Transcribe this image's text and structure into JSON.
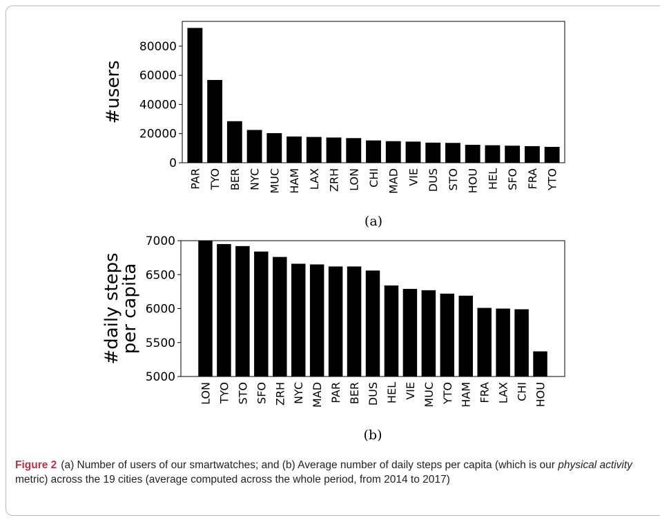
{
  "chart_data": [
    {
      "type": "bar",
      "ylabel": "#users",
      "ylim": [
        0,
        97000
      ],
      "yticks": [
        "0",
        "20000",
        "40000",
        "60000",
        "80000"
      ],
      "categories": [
        "PAR",
        "TYO",
        "BER",
        "NYC",
        "MUC",
        "HAM",
        "LAX",
        "ZRH",
        "LON",
        "CHI",
        "MAD",
        "VIE",
        "DUS",
        "STO",
        "HOU",
        "HEL",
        "SFO",
        "FRA",
        "YTO"
      ],
      "values": [
        92500,
        56800,
        28500,
        22500,
        20300,
        18000,
        17700,
        17300,
        16900,
        15300,
        14800,
        14500,
        13800,
        13600,
        12300,
        12000,
        11700,
        11400,
        10900
      ],
      "label": "(a)"
    },
    {
      "type": "bar",
      "ylabel_lines": [
        "#daily steps",
        "per capita"
      ],
      "ylim": [
        5000,
        7000
      ],
      "yticks": [
        "5000",
        "5500",
        "6000",
        "6500",
        "7000"
      ],
      "categories": [
        "LON",
        "TYO",
        "STO",
        "SFO",
        "ZRH",
        "NYC",
        "MAD",
        "PAR",
        "BER",
        "DUS",
        "HEL",
        "VIE",
        "MUC",
        "YTO",
        "HAM",
        "FRA",
        "LAX",
        "CHI",
        "HOU"
      ],
      "values": [
        7000,
        6950,
        6920,
        6840,
        6760,
        6660,
        6650,
        6620,
        6620,
        6560,
        6340,
        6290,
        6270,
        6220,
        6190,
        6010,
        6000,
        5990,
        5370
      ],
      "label": "(b)"
    }
  ],
  "caption": {
    "lead": "Figure 2",
    "text": "(a) Number of users of our smartwatches; and (b) Average number of daily steps per capita (which is our ",
    "emph": "physical activity",
    "tail": " metric) across the 19 cities (average computed across the whole period, from 2014 to 2017)"
  }
}
